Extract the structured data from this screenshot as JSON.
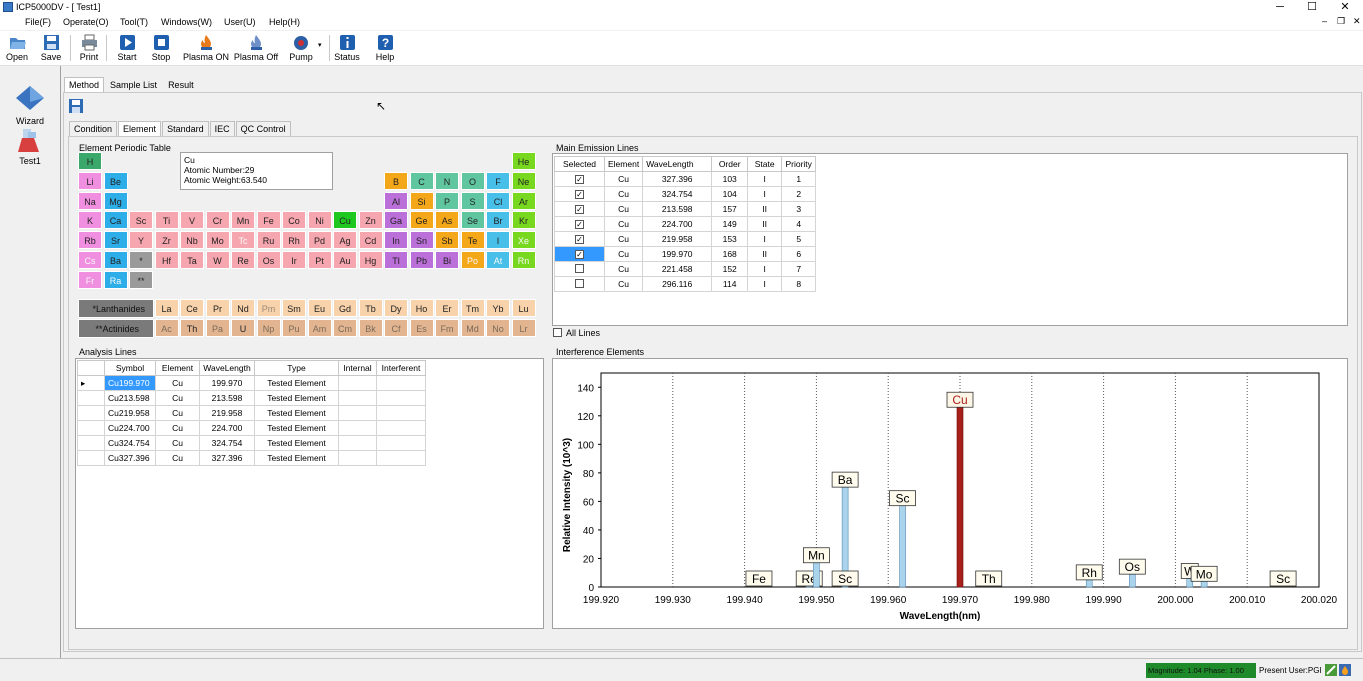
{
  "window": {
    "title": "ICP5000DV - [ Test1]",
    "min": "─",
    "max": "☐",
    "close": "✕",
    "mdi_min": "‒",
    "mdi_max": "❐",
    "mdi_close": "✕"
  },
  "menu": [
    "File(F)",
    "Operate(O)",
    "Tool(T)",
    "Windows(W)",
    "User(U)",
    "Help(H)"
  ],
  "toolbar": {
    "open": "Open",
    "save": "Save",
    "print": "Print",
    "start": "Start",
    "stop": "Stop",
    "plasma_on": "Plasma ON",
    "plasma_off": "Plasma Off",
    "pump": "Pump",
    "status": "Status",
    "help": "Help"
  },
  "left_panel": {
    "wizard": "Wizard",
    "test": "Test1"
  },
  "main_tabs": [
    "Method",
    "Sample List",
    "Result"
  ],
  "sub_tabs": [
    "Condition",
    "Element",
    "Standard",
    "IEC",
    "QC Control"
  ],
  "periodic": {
    "title": "Element Periodic Table",
    "info_symbol": "Cu",
    "info_number": "Atomic Number:29",
    "info_weight": "Atomic Weight:63.540",
    "lanthanides_label": "*Lanthanides",
    "actinides_label": "**Actinides"
  },
  "emission": {
    "title": "Main Emission Lines",
    "headers": [
      "Selected",
      "Element",
      "WaveLength",
      "Order",
      "State",
      "Priority"
    ],
    "rows": [
      {
        "el": "Cu",
        "wl": "327.396",
        "order": "103",
        "state": "I",
        "priority": "1",
        "checked": "☑"
      },
      {
        "el": "Cu",
        "wl": "324.754",
        "order": "104",
        "state": "I",
        "priority": "2",
        "checked": "☑"
      },
      {
        "el": "Cu",
        "wl": "213.598",
        "order": "157",
        "state": "II",
        "priority": "3",
        "checked": "☑"
      },
      {
        "el": "Cu",
        "wl": "224.700",
        "order": "149",
        "state": "II",
        "priority": "4",
        "checked": "☑"
      },
      {
        "el": "Cu",
        "wl": "219.958",
        "order": "153",
        "state": "I",
        "priority": "5",
        "checked": "☑"
      },
      {
        "el": "Cu",
        "wl": "199.970",
        "order": "168",
        "state": "II",
        "priority": "6",
        "checked": "☑"
      },
      {
        "el": "Cu",
        "wl": "221.458",
        "order": "152",
        "state": "I",
        "priority": "7",
        "checked": ""
      },
      {
        "el": "Cu",
        "wl": "296.116",
        "order": "114",
        "state": "I",
        "priority": "8",
        "checked": ""
      }
    ],
    "all_lines": "All Lines"
  },
  "analysis": {
    "title": "Analysis Lines",
    "headers": [
      "Symbol",
      "Element",
      "WaveLength",
      "Type",
      "Internal",
      "Interferent"
    ],
    "rows": [
      {
        "sym": "Cu199.970",
        "el": "Cu",
        "wl": "199.970",
        "type": "Tested Element"
      },
      {
        "sym": "Cu213.598",
        "el": "Cu",
        "wl": "213.598",
        "type": "Tested Element"
      },
      {
        "sym": "Cu219.958",
        "el": "Cu",
        "wl": "219.958",
        "type": "Tested Element"
      },
      {
        "sym": "Cu224.700",
        "el": "Cu",
        "wl": "224.700",
        "type": "Tested Element"
      },
      {
        "sym": "Cu324.754",
        "el": "Cu",
        "wl": "324.754",
        "type": "Tested Element"
      },
      {
        "sym": "Cu327.396",
        "el": "Cu",
        "wl": "327.396",
        "type": "Tested Element"
      }
    ],
    "row_marker": "▸"
  },
  "interference": {
    "title": "Interference Elements"
  },
  "chart_data": {
    "type": "bar",
    "xlabel": "WaveLength(nm)",
    "ylabel": "Relative Intensity (10^3)",
    "xlim": [
      199.92,
      200.02
    ],
    "ylim": [
      0,
      150
    ],
    "x_ticks": [
      "199.920",
      "199.930",
      "199.940",
      "199.950",
      "199.960",
      "199.970",
      "199.980",
      "199.990",
      "200.000",
      "200.010",
      "200.020"
    ],
    "y_ticks": [
      "0",
      "20",
      "40",
      "60",
      "80",
      "100",
      "120",
      "140"
    ],
    "grid": true,
    "lines": [
      {
        "el": "Fe",
        "x": 199.942,
        "y": 0
      },
      {
        "el": "Re",
        "x": 199.949,
        "y": 1
      },
      {
        "el": "Mn",
        "x": 199.95,
        "y": 17
      },
      {
        "el": "Ba",
        "x": 199.954,
        "y": 70
      },
      {
        "el": "Sc",
        "x": 199.954,
        "y": 1
      },
      {
        "el": "Sc",
        "x": 199.962,
        "y": 57
      },
      {
        "el": "Cu",
        "x": 199.97,
        "y": 126
      },
      {
        "el": "Th",
        "x": 199.974,
        "y": 0
      },
      {
        "el": "Rh",
        "x": 199.988,
        "y": 5
      },
      {
        "el": "Os",
        "x": 199.994,
        "y": 9
      },
      {
        "el": "W",
        "x": 200.002,
        "y": 6
      },
      {
        "el": "Mo",
        "x": 200.004,
        "y": 4
      },
      {
        "el": "Sc",
        "x": 200.015,
        "y": 0
      }
    ],
    "highlight_color": "#a8201a",
    "bar_color": "#a9d4ec"
  },
  "status": {
    "magnitude": "Magnitude: 1.04  Phase: 1.00",
    "user": "Present User:PGI"
  },
  "colors": {
    "alkali": "#f08ee0",
    "alkaline": "#2eaee8",
    "transition": "#f6a6ae",
    "post": "#bb6fd8",
    "metalloid": "#f5a71a",
    "nonmetal": "#5fc6a0",
    "halogen": "#48bfe8",
    "noble": "#78d820",
    "selected": "#1ec81e"
  }
}
